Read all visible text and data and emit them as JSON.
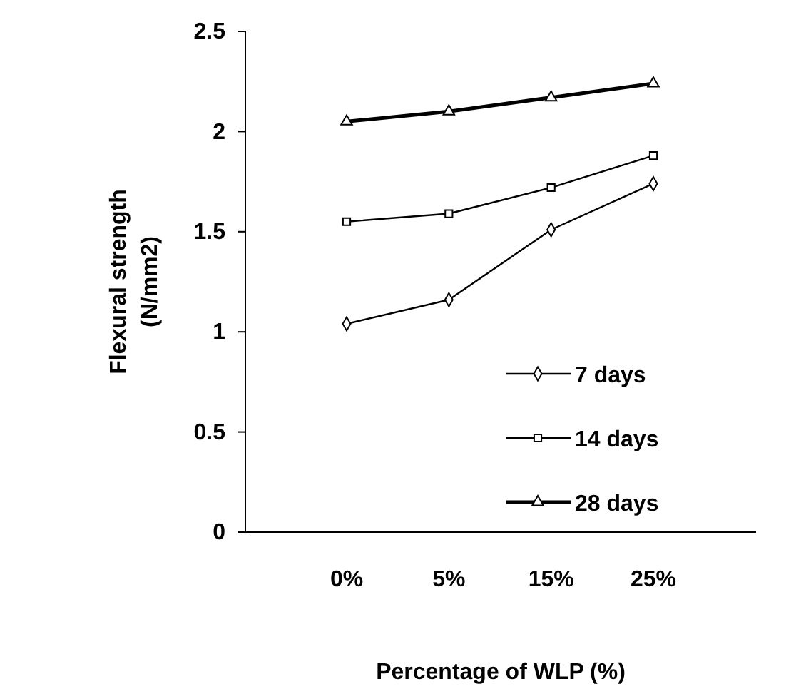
{
  "chart_data": {
    "type": "line",
    "xlabel": "Percentage of WLP (%)",
    "ylabel": "Flexural strength (N/mm2)",
    "categories": [
      "0%",
      "5%",
      "15%",
      "25%"
    ],
    "ylim": [
      0,
      2.5
    ],
    "yticks": [
      0,
      0.5,
      1,
      1.5,
      2,
      2.5
    ],
    "grid": false,
    "legend": "bottom right",
    "series": [
      {
        "name": "7 days",
        "color": "#000000",
        "marker": "diamond",
        "values": [
          1.04,
          1.16,
          1.51,
          1.74
        ]
      },
      {
        "name": "14 days",
        "color": "#000000",
        "marker": "square",
        "values": [
          1.55,
          1.59,
          1.72,
          1.88
        ]
      },
      {
        "name": "28 days",
        "color": "#000000",
        "marker": "triangle",
        "values": [
          2.05,
          2.1,
          2.17,
          2.24
        ]
      }
    ]
  }
}
